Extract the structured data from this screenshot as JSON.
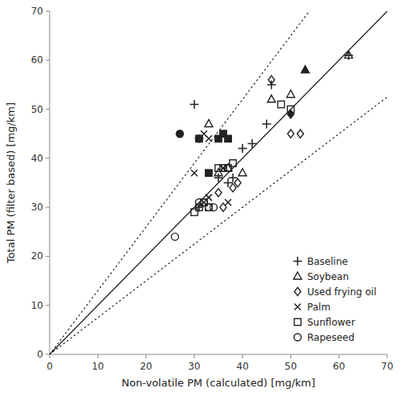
{
  "chart_data": {
    "type": "scatter",
    "xlabel": "Non-volatile PM (calculated) [mg/km]",
    "ylabel": "Total PM (filter based) [mg/km]",
    "xlim": [
      0,
      70
    ],
    "ylim": [
      0,
      70
    ],
    "xticks": [
      0,
      10,
      20,
      30,
      40,
      50,
      60,
      70
    ],
    "yticks": [
      0,
      10,
      20,
      30,
      40,
      50,
      60,
      70
    ],
    "grid": false,
    "legend": "lower right",
    "reference_lines": [
      {
        "slope": 1,
        "line_style": "solid"
      },
      {
        "slope": 1.3,
        "line_style": "dotted"
      },
      {
        "slope": 0.75,
        "line_style": "dotted"
      }
    ],
    "series": [
      {
        "name": "Baseline",
        "marker": "plus-open",
        "x": [
          31,
          35,
          37,
          38,
          40,
          42,
          45,
          46,
          62
        ],
        "values": [
          30,
          36,
          35,
          36,
          42,
          43,
          47,
          55,
          61
        ]
      },
      {
        "name": "Soybean",
        "marker": "triangle-open",
        "x": [
          33,
          35,
          37,
          40,
          46,
          50,
          62
        ],
        "values": [
          47,
          37,
          38,
          37,
          52,
          53,
          61
        ]
      },
      {
        "name": "Used frying oil",
        "marker": "diamond-open",
        "x": [
          35,
          36,
          38,
          39,
          46,
          50,
          52
        ],
        "values": [
          33,
          30,
          34,
          35,
          56,
          45,
          45
        ]
      },
      {
        "name": "Palm",
        "marker": "x-open",
        "x": [
          30,
          32,
          33,
          36,
          37
        ],
        "values": [
          37,
          31,
          32,
          38,
          31
        ]
      },
      {
        "name": "Sunflower",
        "marker": "square-open",
        "x": [
          30,
          31,
          32,
          33,
          35,
          36,
          37,
          38,
          48,
          50
        ],
        "values": [
          29,
          30,
          31,
          30,
          38,
          38,
          38,
          39,
          51,
          50
        ]
      },
      {
        "name": "Rapeseed",
        "marker": "circle-open",
        "x": [
          26,
          31,
          32,
          33,
          34
        ],
        "values": [
          24,
          31,
          31,
          30,
          30
        ]
      },
      {
        "marker": "plus",
        "x": [
          30,
          31
        ],
        "values": [
          51,
          44
        ]
      },
      {
        "marker": "triangle",
        "x": [
          53
        ],
        "values": [
          58
        ]
      },
      {
        "marker": "diamond",
        "x": [
          50
        ],
        "values": [
          49
        ]
      },
      {
        "marker": "x",
        "x": [
          32,
          33,
          35
        ],
        "values": [
          45,
          44,
          44
        ]
      },
      {
        "marker": "square",
        "x": [
          31,
          33,
          35,
          36,
          37
        ],
        "values": [
          44,
          37,
          44,
          45,
          44
        ]
      },
      {
        "marker": "circle",
        "x": [
          27
        ],
        "values": [
          45
        ]
      }
    ]
  }
}
